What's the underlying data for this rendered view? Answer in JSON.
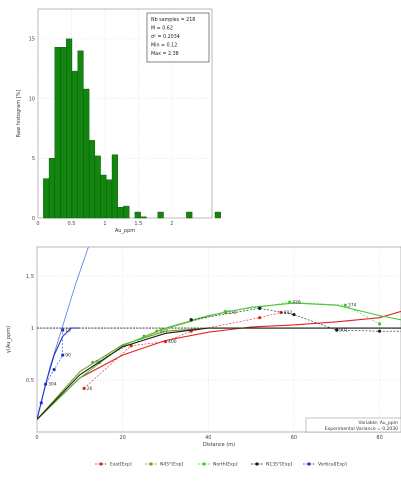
{
  "chart_data": [
    {
      "type": "bar",
      "xlabel": "Au_ppm",
      "ylabel": "Raw histogram [%]",
      "xlim": [
        0,
        2.6
      ],
      "ylim": [
        0,
        17.5
      ],
      "xticks": [
        "0",
        "0.5",
        "1",
        "1.5",
        "2"
      ],
      "yticks": [
        "0",
        "5",
        "10",
        "15"
      ],
      "bin_start": 0.08,
      "bin_width": 0.0855,
      "values": [
        3.3,
        5.0,
        14.3,
        14.3,
        15.0,
        12.3,
        14.0,
        10.8,
        6.5,
        5.2,
        3.6,
        3.2,
        5.3,
        0.9,
        1.0,
        0,
        0.5,
        0.1,
        0,
        0,
        0.5,
        0,
        0,
        0,
        0,
        0.5,
        0,
        0,
        0,
        0,
        0.5
      ],
      "stats": [
        "Nb samples = 218",
        "M = 0.62",
        "σ² = 0.2034",
        "Min = 0.12",
        "Max = 2.38"
      ],
      "color": "#12860f"
    },
    {
      "type": "line",
      "xlabel": "Distance (m)",
      "ylabel": "γ(Au_ppm)",
      "xlim": [
        0,
        85
      ],
      "ylim": [
        0,
        1.78
      ],
      "xticks": [
        "0",
        "20",
        "40",
        "60",
        "80"
      ],
      "yticks": [
        "0.5",
        "1",
        "1.5"
      ],
      "sill": 1.0,
      "info": [
        "Variable: Au_ppm",
        "Experimental Variance = 0.2030"
      ],
      "legend_position": "bottom",
      "series": [
        {
          "name": "East[Exp]",
          "color": "#e02424",
          "points": [
            [
              11,
              0.42
            ],
            [
              22,
              0.83
            ],
            [
              30,
              0.87
            ],
            [
              36,
              0.97
            ],
            [
              52,
              1.1
            ],
            [
              57,
              1.15
            ]
          ],
          "labels": [
            "26",
            "",
            "400",
            "",
            "",
            "892"
          ],
          "model": [
            [
              0,
              0.12
            ],
            [
              10,
              0.52
            ],
            [
              20,
              0.74
            ],
            [
              30,
              0.88
            ],
            [
              40,
              0.96
            ],
            [
              50,
              1.01
            ],
            [
              60,
              1.03
            ],
            [
              70,
              1.06
            ],
            [
              80,
              1.1
            ],
            [
              85,
              1.16
            ]
          ]
        },
        {
          "name": "N45°[Exp]",
          "color": "#7a9e1c",
          "points": [
            [
              25,
              0.92
            ],
            [
              28,
              0.97
            ],
            [
              44,
              1.15
            ]
          ],
          "labels": [
            "",
            "177",
            "570"
          ],
          "model": [
            [
              0,
              0.12
            ],
            [
              10,
              0.58
            ],
            [
              20,
              0.84
            ],
            [
              30,
              0.97
            ],
            [
              40,
              1.0
            ],
            [
              85,
              1.0
            ]
          ]
        },
        {
          "name": "North[Exp]",
          "color": "#4cc43a",
          "points": [
            [
              13,
              0.67
            ],
            [
              29,
              0.98
            ],
            [
              44,
              1.16
            ],
            [
              52,
              1.2
            ],
            [
              59,
              1.25
            ],
            [
              72,
              1.22
            ],
            [
              80,
              1.04
            ]
          ],
          "labels": [
            "36",
            "",
            "",
            "",
            "326",
            "374",
            ""
          ],
          "model": [
            [
              0,
              0.12
            ],
            [
              10,
              0.52
            ],
            [
              20,
              0.83
            ],
            [
              30,
              1.0
            ],
            [
              40,
              1.12
            ],
            [
              50,
              1.2
            ],
            [
              60,
              1.24
            ],
            [
              70,
              1.22
            ],
            [
              80,
              1.12
            ],
            [
              85,
              1.08
            ]
          ]
        },
        {
          "name": "N135°[Exp]",
          "color": "#1c1c1c",
          "points": [
            [
              36,
              1.08
            ],
            [
              52,
              1.19
            ],
            [
              60,
              1.13
            ],
            [
              70,
              0.98
            ],
            [
              80,
              0.97
            ],
            [
              98,
              0.97
            ]
          ],
          "labels": [
            "",
            "",
            "",
            "901",
            "",
            "882"
          ],
          "model": [
            [
              0,
              0.12
            ],
            [
              10,
              0.55
            ],
            [
              20,
              0.82
            ],
            [
              30,
              0.95
            ],
            [
              40,
              1.0
            ],
            [
              85,
              1.0
            ]
          ]
        },
        {
          "name": "Vertical[Exp]",
          "color": "#2233cc",
          "points": [
            [
              1,
              0.28
            ],
            [
              2,
              0.46
            ],
            [
              4,
              0.6
            ],
            [
              6,
              0.74
            ],
            [
              6,
              0.98
            ]
          ],
          "labels": [
            "",
            "304",
            "",
            "90",
            "15"
          ],
          "model": [
            [
              0,
              0.12
            ],
            [
              2,
              0.46
            ],
            [
              4,
              0.74
            ],
            [
              6,
              0.92
            ],
            [
              8,
              1.0
            ],
            [
              10,
              1.0
            ]
          ]
        }
      ],
      "extra_curve": {
        "color": "#5a7ae0",
        "points": [
          [
            0,
            0.12
          ],
          [
            3,
            0.62
          ],
          [
            6,
            1.02
          ],
          [
            9,
            1.42
          ],
          [
            12,
            1.78
          ]
        ]
      }
    }
  ]
}
